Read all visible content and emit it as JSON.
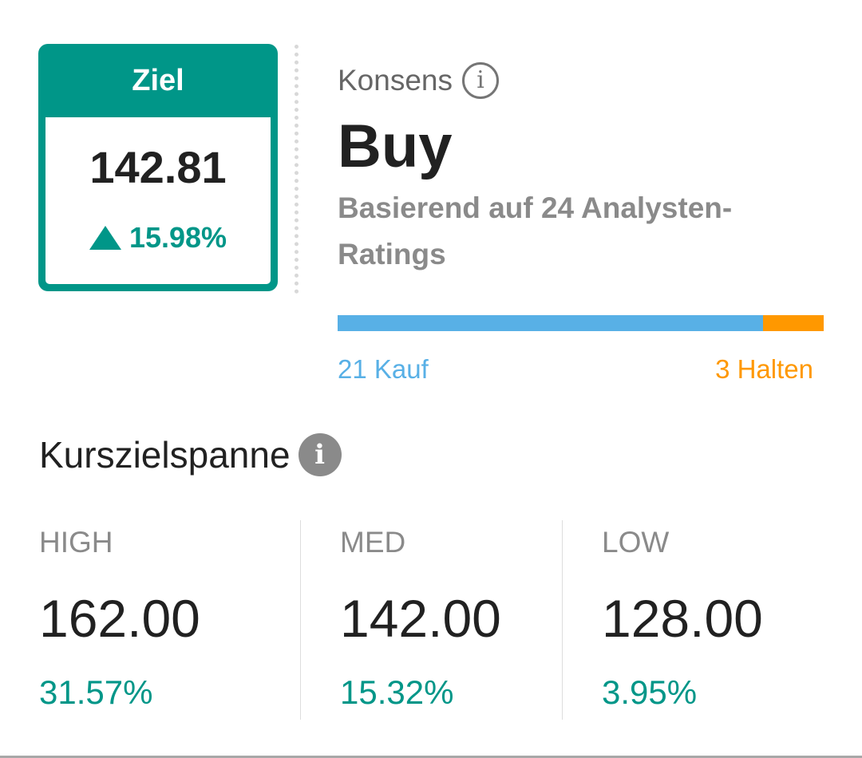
{
  "target": {
    "header": "Ziel",
    "price": "142.81",
    "change": "15.98%"
  },
  "consensus": {
    "label": "Konsens",
    "value": "Buy",
    "basis": "Basierend auf 24 Analysten-Ratings",
    "ratings": {
      "buy_count": 21,
      "hold_count": 3,
      "buy_label": "21 Kauf",
      "hold_label": "3 Halten"
    }
  },
  "price_range": {
    "title": "Kurszielspanne",
    "columns": [
      {
        "label": "HIGH",
        "value": "162.00",
        "pct": "31.57%"
      },
      {
        "label": "MED",
        "value": "142.00",
        "pct": "15.32%"
      },
      {
        "label": "LOW",
        "value": "128.00",
        "pct": "3.95%"
      }
    ]
  },
  "colors": {
    "teal": "#009688",
    "buy_blue": "#58b0e6",
    "hold_orange": "#ff9800"
  },
  "icons": {
    "consensus_info": "info-outline-icon",
    "range_info": "info-filled-icon",
    "change_arrow": "triangle-up-icon"
  }
}
